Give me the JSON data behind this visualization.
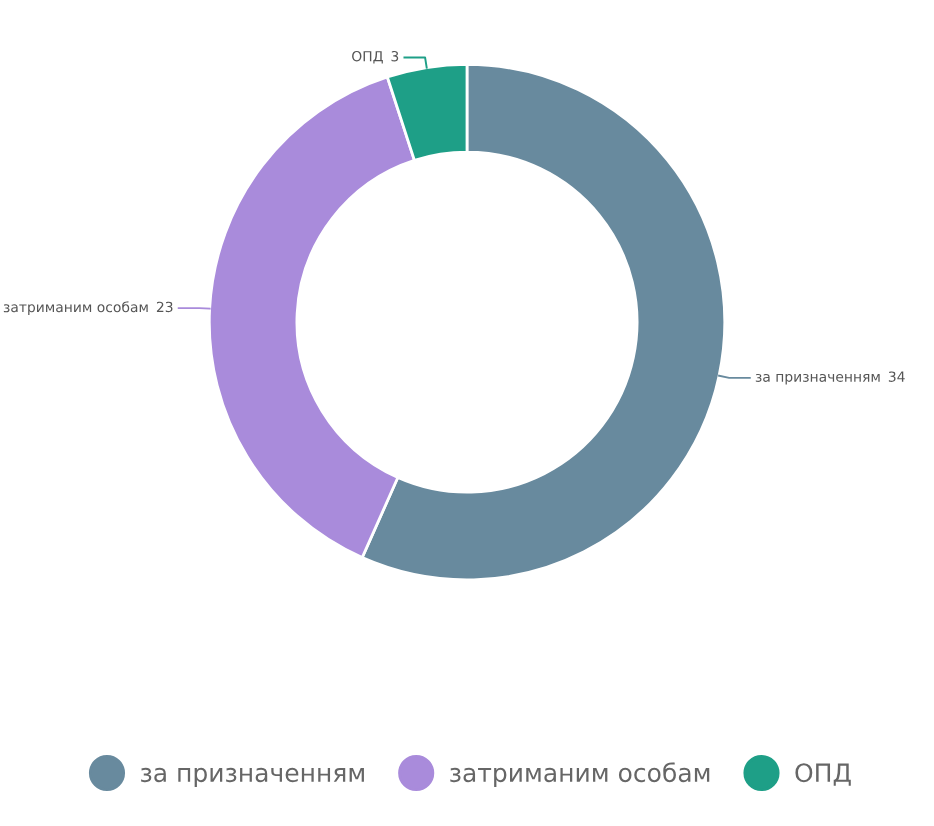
{
  "chart_data": {
    "type": "donut",
    "categories": [
      "за призначенням",
      "затриманим особам",
      "ОПД"
    ],
    "values": [
      34,
      23,
      3
    ],
    "colors": [
      "#688a9e",
      "#a98bdb",
      "#1e9f87"
    ],
    "data_labels": true,
    "legend": "bottom"
  }
}
